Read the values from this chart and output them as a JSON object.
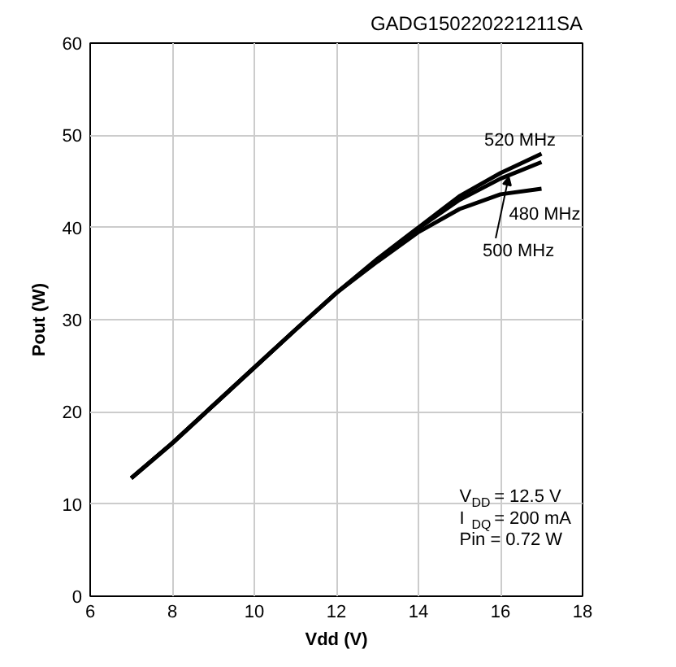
{
  "chart_data": {
    "type": "line",
    "xlabel": "Vdd (V)",
    "ylabel": "Pout (W)",
    "x": [
      7,
      8,
      9,
      10,
      11,
      12,
      13,
      14,
      15,
      16,
      17
    ],
    "series": [
      {
        "color": "#000000",
        "values": [
          12.8,
          16.6,
          20.7,
          24.8,
          28.9,
          32.9,
          36.6,
          40.0,
          43.4,
          45.9,
          48.0
        ]
      },
      {
        "color": "#000000",
        "values": [
          12.8,
          16.6,
          20.7,
          24.8,
          28.9,
          32.9,
          36.5,
          39.9,
          43.0,
          45.3,
          47.1
        ]
      },
      {
        "color": "#000000",
        "values": [
          12.8,
          16.6,
          20.7,
          24.8,
          28.9,
          32.9,
          36.3,
          39.5,
          42.0,
          43.6,
          44.2
        ]
      }
    ],
    "xlim": [
      6,
      18
    ],
    "xticks": [
      6,
      8,
      10,
      12,
      14,
      16,
      18
    ],
    "ylim": [
      0,
      60
    ],
    "yticks": [
      0,
      10,
      20,
      30,
      40,
      50,
      60
    ],
    "grid": true,
    "marker": "none",
    "line_style": "solid",
    "annotations": [
      "GADG150220221211SA",
      "V$_{DD}$ = 12.5 V",
      "I$_{DQ}$ = 200 mA",
      "Pin = 0.72 W",
      {
        "text": "520 MHz",
        "x": 16,
        "y": 45.9
      },
      {
        "text": "480 MHz",
        "x": 17,
        "y": 44.2
      },
      {
        "text": "500 MHz",
        "x": 16.2,
        "y": 45.5
      }
    ]
  }
}
